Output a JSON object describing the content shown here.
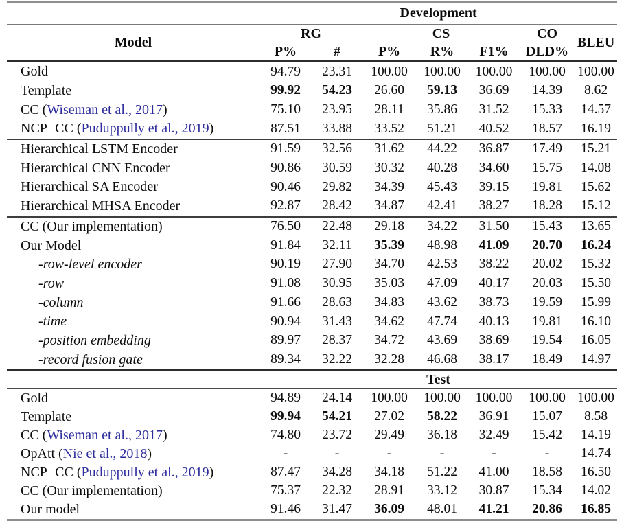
{
  "header": {
    "development": "Development",
    "test": "Test",
    "model": "Model",
    "groups": [
      "RG",
      "CS",
      "CO"
    ],
    "bleu": "BLEU",
    "subcolumns": [
      "P%",
      "#",
      "P%",
      "R%",
      "F1%",
      "DLD%"
    ]
  },
  "colors": {
    "citation_link": "#2c2c9e"
  },
  "development": {
    "rows": [
      {
        "name": "Gold",
        "cite": "",
        "suffix": "",
        "italic": false,
        "sep": false,
        "values": [
          "94.79",
          "23.31",
          "100.00",
          "100.00",
          "100.00",
          "100.00",
          "100.00"
        ],
        "bold": []
      },
      {
        "name": "Template",
        "cite": "",
        "suffix": "",
        "italic": false,
        "sep": false,
        "values": [
          "99.92",
          "54.23",
          "26.60",
          "59.13",
          "36.69",
          "14.39",
          "8.62"
        ],
        "bold": [
          0,
          1,
          3
        ]
      },
      {
        "name": "CC (",
        "cite": "Wiseman et al., 2017",
        "suffix": ")",
        "italic": false,
        "sep": false,
        "values": [
          "75.10",
          "23.95",
          "28.11",
          "35.86",
          "31.52",
          "15.33",
          "14.57"
        ],
        "bold": []
      },
      {
        "name": "NCP+CC (",
        "cite": "Puduppully et al., 2019",
        "suffix": ")",
        "italic": false,
        "sep": false,
        "values": [
          "87.51",
          "33.88",
          "33.52",
          "51.21",
          "40.52",
          "18.57",
          "16.19"
        ],
        "bold": []
      },
      {
        "name": "Hierarchical LSTM Encoder",
        "cite": "",
        "suffix": "",
        "italic": false,
        "sep": true,
        "values": [
          "91.59",
          "32.56",
          "31.62",
          "44.22",
          "36.87",
          "17.49",
          "15.21"
        ],
        "bold": []
      },
      {
        "name": "Hierarchical CNN Encoder",
        "cite": "",
        "suffix": "",
        "italic": false,
        "sep": false,
        "values": [
          "90.86",
          "30.59",
          "30.32",
          "40.28",
          "34.60",
          "15.75",
          "14.08"
        ],
        "bold": []
      },
      {
        "name": "Hierarchical SA Encoder",
        "cite": "",
        "suffix": "",
        "italic": false,
        "sep": false,
        "values": [
          "90.46",
          "29.82",
          "34.39",
          "45.43",
          "39.15",
          "19.81",
          "15.62"
        ],
        "bold": []
      },
      {
        "name": "Hierarchical MHSA Encoder",
        "cite": "",
        "suffix": "",
        "italic": false,
        "sep": false,
        "values": [
          "92.87",
          "28.42",
          "34.87",
          "42.41",
          "38.27",
          "18.28",
          "15.12"
        ],
        "bold": []
      },
      {
        "name": "CC (Our implementation)",
        "cite": "",
        "suffix": "",
        "italic": false,
        "sep": true,
        "values": [
          "76.50",
          "22.48",
          "29.18",
          "34.22",
          "31.50",
          "15.43",
          "13.65"
        ],
        "bold": []
      },
      {
        "name": "Our Model",
        "cite": "",
        "suffix": "",
        "italic": false,
        "sep": false,
        "values": [
          "91.84",
          "32.11",
          "35.39",
          "48.98",
          "41.09",
          "20.70",
          "16.24"
        ],
        "bold": [
          2,
          4,
          5,
          6
        ]
      },
      {
        "name": "-row-level encoder",
        "cite": "",
        "suffix": "",
        "italic": true,
        "sep": false,
        "values": [
          "90.19",
          "27.90",
          "34.70",
          "42.53",
          "38.22",
          "20.02",
          "15.32"
        ],
        "bold": []
      },
      {
        "name": "-row",
        "cite": "",
        "suffix": "",
        "italic": true,
        "sep": false,
        "values": [
          "91.08",
          "30.95",
          "35.03",
          "47.09",
          "40.17",
          "20.03",
          "15.50"
        ],
        "bold": []
      },
      {
        "name": "-column",
        "cite": "",
        "suffix": "",
        "italic": true,
        "sep": false,
        "values": [
          "91.66",
          "28.63",
          "34.83",
          "43.62",
          "38.73",
          "19.59",
          "15.99"
        ],
        "bold": []
      },
      {
        "name": "-time",
        "cite": "",
        "suffix": "",
        "italic": true,
        "sep": false,
        "values": [
          "90.94",
          "31.43",
          "34.62",
          "47.74",
          "40.13",
          "19.81",
          "16.10"
        ],
        "bold": []
      },
      {
        "name": "-position embedding",
        "cite": "",
        "suffix": "",
        "italic": true,
        "sep": false,
        "values": [
          "89.97",
          "28.37",
          "34.72",
          "43.69",
          "38.69",
          "19.54",
          "16.05"
        ],
        "bold": []
      },
      {
        "name": "-record fusion gate",
        "cite": "",
        "suffix": "",
        "italic": true,
        "sep": false,
        "values": [
          "89.34",
          "32.22",
          "32.28",
          "46.68",
          "38.17",
          "18.49",
          "14.97"
        ],
        "bold": []
      }
    ]
  },
  "test": {
    "rows": [
      {
        "name": "Gold",
        "cite": "",
        "suffix": "",
        "italic": false,
        "sep": false,
        "values": [
          "94.89",
          "24.14",
          "100.00",
          "100.00",
          "100.00",
          "100.00",
          "100.00"
        ],
        "bold": []
      },
      {
        "name": "Template",
        "cite": "",
        "suffix": "",
        "italic": false,
        "sep": false,
        "values": [
          "99.94",
          "54.21",
          "27.02",
          "58.22",
          "36.91",
          "15.07",
          "8.58"
        ],
        "bold": [
          0,
          1,
          3
        ]
      },
      {
        "name": "CC (",
        "cite": "Wiseman et al., 2017",
        "suffix": ")",
        "italic": false,
        "sep": false,
        "values": [
          "74.80",
          "23.72",
          "29.49",
          "36.18",
          "32.49",
          "15.42",
          "14.19"
        ],
        "bold": []
      },
      {
        "name": "OpAtt (",
        "cite": "Nie et al., 2018",
        "suffix": ")",
        "italic": false,
        "sep": false,
        "values": [
          "-",
          "-",
          "-",
          "-",
          "-",
          "-",
          "14.74"
        ],
        "bold": []
      },
      {
        "name": "NCP+CC (",
        "cite": "Puduppully et al., 2019",
        "suffix": ")",
        "italic": false,
        "sep": false,
        "values": [
          "87.47",
          "34.28",
          "34.18",
          "51.22",
          "41.00",
          "18.58",
          "16.50"
        ],
        "bold": []
      },
      {
        "name": "CC (Our implementation)",
        "cite": "",
        "suffix": "",
        "italic": false,
        "sep": false,
        "values": [
          "75.37",
          "22.32",
          "28.91",
          "33.12",
          "30.87",
          "15.34",
          "14.02"
        ],
        "bold": []
      },
      {
        "name": "Our model",
        "cite": "",
        "suffix": "",
        "italic": false,
        "sep": false,
        "values": [
          "91.46",
          "31.47",
          "36.09",
          "48.01",
          "41.21",
          "20.86",
          "16.85"
        ],
        "bold": [
          2,
          4,
          5,
          6
        ]
      }
    ]
  }
}
